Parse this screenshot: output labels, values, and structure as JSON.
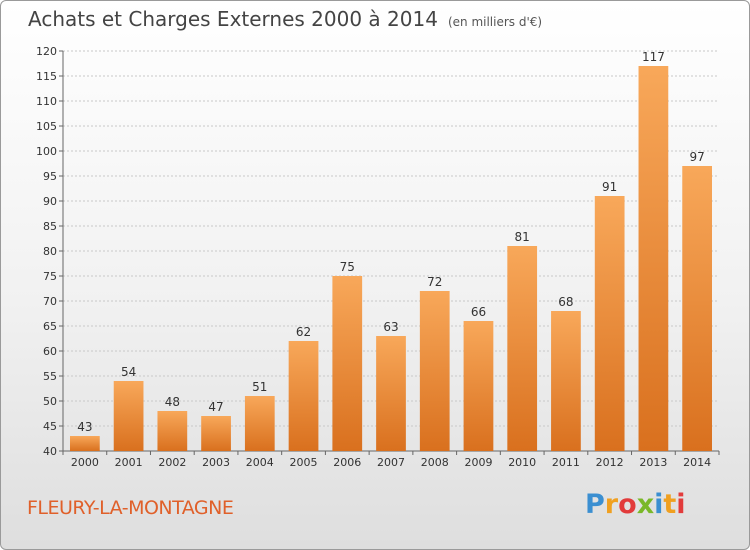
{
  "chart_data": {
    "type": "bar",
    "title": "Achats et Charges Externes 2000 à 2014",
    "unit_label": "(en milliers d'€)",
    "categories": [
      "2000",
      "2001",
      "2002",
      "2003",
      "2004",
      "2005",
      "2006",
      "2007",
      "2008",
      "2009",
      "2010",
      "2011",
      "2012",
      "2013",
      "2014"
    ],
    "values": [
      43,
      54,
      48,
      47,
      51,
      62,
      75,
      63,
      72,
      66,
      81,
      68,
      91,
      117,
      97
    ],
    "ylim": [
      40,
      120
    ],
    "yticks": [
      40,
      45,
      50,
      55,
      60,
      65,
      70,
      75,
      80,
      85,
      90,
      95,
      100,
      105,
      110,
      115,
      120
    ],
    "grid": true,
    "bar_color_top": "#f8a85a",
    "bar_color_bottom": "#d9701e"
  },
  "footer": {
    "city": "FLEURY-LA-MONTAGNE",
    "logo": [
      "P",
      "r",
      "o",
      "x",
      "i",
      "t",
      "i"
    ],
    "logo_colors": [
      "#3b8fd1",
      "#f0a020",
      "#e23b3b",
      "#7ab828",
      "#3b8fd1",
      "#f0a020",
      "#e23b3b"
    ]
  }
}
